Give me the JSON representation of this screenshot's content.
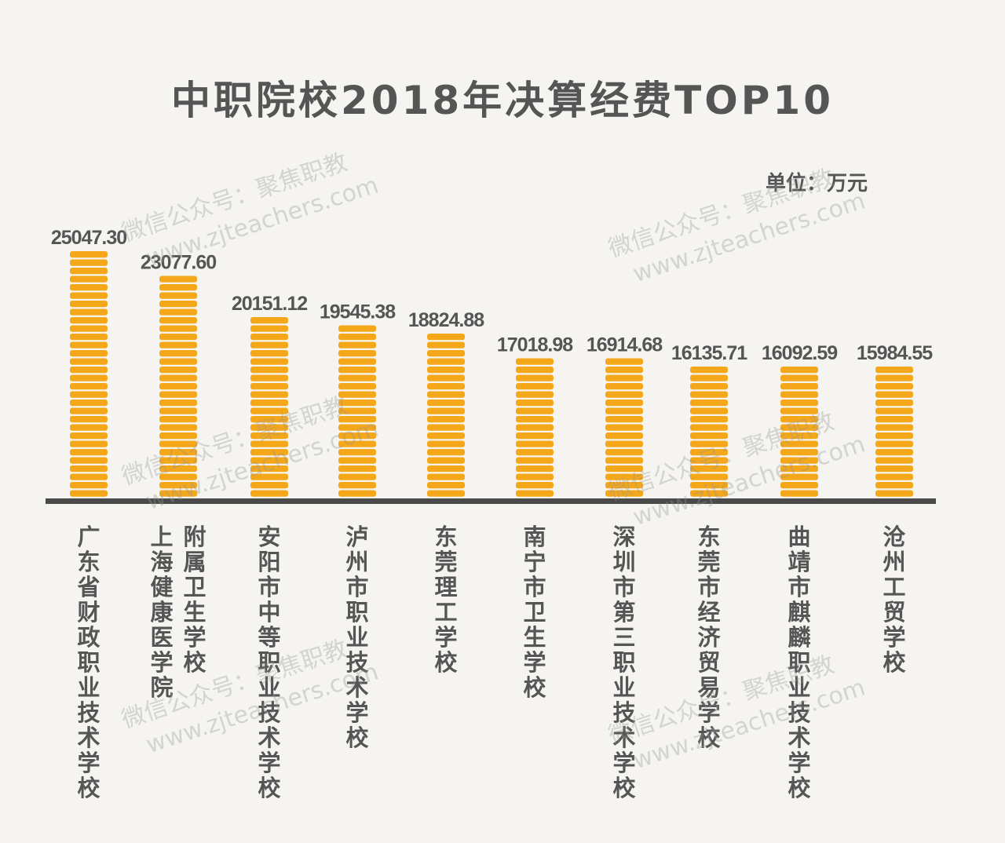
{
  "chart_data": {
    "type": "bar",
    "title": "中职院校2018年决算经费TOP10",
    "unit_label": "单位：万元",
    "categories": [
      "广东省财政职业技术学校",
      "上海健康医学院附属卫生学校",
      "安阳市中等职业技术学校",
      "泸州市职业技术学校",
      "东莞理工学校",
      "南宁市卫生学校",
      "深圳市第三职业技术学校",
      "东莞市经济贸易学校",
      "曲靖市麒麟职业技术学校",
      "沧州工贸学校"
    ],
    "category_lines": [
      [
        "广东省财政职业技术学校"
      ],
      [
        "上海健康医学院",
        "附属卫生学校"
      ],
      [
        "安阳市中等职业技术学校"
      ],
      [
        "泸州市职业技术学校"
      ],
      [
        "东莞理工学校"
      ],
      [
        "南宁市卫生学校"
      ],
      [
        "深圳市第三职业技术学校"
      ],
      [
        "东莞市经济贸易学校"
      ],
      [
        "曲靖市麒麟职业技术学校"
      ],
      [
        "沧州工贸学校"
      ]
    ],
    "values": [
      25047.3,
      23077.6,
      20151.12,
      19545.38,
      18824.88,
      17018.98,
      16914.68,
      16135.71,
      16092.59,
      15984.55
    ],
    "value_labels": [
      "25047.30",
      "23077.60",
      "20151.12",
      "19545.38",
      "18824.88",
      "17018.98",
      "16914.68",
      "16135.71",
      "16092.59",
      "15984.55"
    ],
    "xlabel": "",
    "ylabel": "",
    "grid": false,
    "legend": "none",
    "colors": {
      "bar": "#f5a71a",
      "bar_gap": "#fde9b0",
      "axis": "#4a4a4a",
      "text": "#555555",
      "background": "#f5f4f0"
    }
  },
  "watermark": {
    "line1": "微信公众号：聚焦职教",
    "line2": "www.zjteachers.com"
  }
}
